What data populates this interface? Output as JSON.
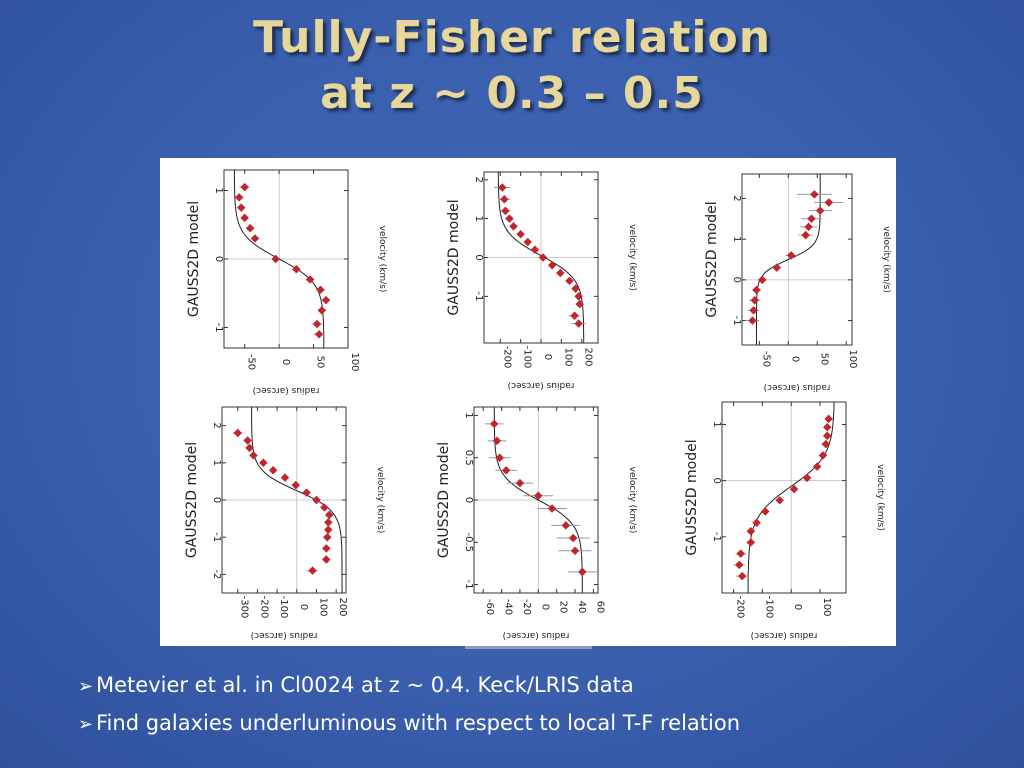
{
  "slide": {
    "title_line1": "Tully-Fisher relation",
    "title_line2": "at z ~ 0.3 – 0.5",
    "bullets": [
      "Metevier et al. in Cl0024 at z ~ 0.4. Keck/LRIS data",
      "Find galaxies underluminous with respect to local T-F relation"
    ],
    "bullet_marker": "➢"
  },
  "colors": {
    "background": "#3a5fae",
    "title": "#e8d79a",
    "points": "#c0262c",
    "curve": "#222222"
  },
  "chart_data": [
    {
      "type": "scatter",
      "title": "GAUSS2D model",
      "xlabel": "radius (arcsec)",
      "ylabel": "velocity (km/s)",
      "xlim": [
        1.3,
        -1.3
      ],
      "ylim": [
        -80,
        100
      ],
      "xticks": [
        1,
        0,
        -1
      ],
      "yticks": [
        -50,
        0,
        50,
        100
      ],
      "grid": "zero-lines",
      "points": [
        [
          1.05,
          -50
        ],
        [
          0.9,
          -58
        ],
        [
          0.75,
          -55
        ],
        [
          0.6,
          -50
        ],
        [
          0.45,
          -42
        ],
        [
          0.3,
          -35
        ],
        [
          0.0,
          -5
        ],
        [
          -0.15,
          25
        ],
        [
          -0.3,
          45
        ],
        [
          -0.45,
          60
        ],
        [
          -0.6,
          68
        ],
        [
          -0.75,
          62
        ],
        [
          -0.95,
          55
        ],
        [
          -1.1,
          58
        ]
      ],
      "errors": [
        8,
        6,
        5,
        5,
        6,
        6,
        5,
        6,
        6,
        6,
        6,
        6,
        8,
        8
      ],
      "curve": {
        "amplitude": 65,
        "center": 0.0,
        "width": 0.35
      }
    },
    {
      "type": "scatter",
      "title": "GAUSS2D model",
      "xlabel": "radius (arcsec)",
      "ylabel": "velocity (km/s)",
      "xlim": [
        2.2,
        -2.2
      ],
      "ylim": [
        -280,
        280
      ],
      "xticks": [
        2,
        1,
        0,
        -1
      ],
      "yticks": [
        -200,
        -100,
        0,
        100,
        200
      ],
      "grid": "zero-lines",
      "points": [
        [
          1.8,
          -190
        ],
        [
          1.5,
          -180
        ],
        [
          1.2,
          -175
        ],
        [
          1.0,
          -155
        ],
        [
          0.8,
          -135
        ],
        [
          0.6,
          -100
        ],
        [
          0.4,
          -65
        ],
        [
          0.2,
          -30
        ],
        [
          0.0,
          10
        ],
        [
          -0.2,
          55
        ],
        [
          -0.4,
          95
        ],
        [
          -0.6,
          140
        ],
        [
          -0.8,
          170
        ],
        [
          -1.0,
          185
        ],
        [
          -1.2,
          190
        ],
        [
          -1.5,
          165
        ],
        [
          -1.7,
          185
        ]
      ],
      "errors": [
        40,
        30,
        25,
        20,
        18,
        15,
        14,
        14,
        14,
        14,
        15,
        15,
        18,
        18,
        20,
        30,
        35
      ],
      "curve": {
        "amplitude": 210,
        "center": 0.05,
        "width": 0.6
      }
    },
    {
      "type": "scatter",
      "title": "GAUSS2D model",
      "xlabel": "radius (arcsec)",
      "ylabel": "velocity (km/s)",
      "xlim": [
        2.6,
        -1.6
      ],
      "ylim": [
        -80,
        110
      ],
      "xticks": [
        2,
        1,
        0,
        -1
      ],
      "yticks": [
        -50,
        0,
        50,
        100
      ],
      "grid": "zero-lines",
      "points": [
        [
          2.1,
          45
        ],
        [
          1.9,
          70
        ],
        [
          1.7,
          55
        ],
        [
          1.5,
          40
        ],
        [
          1.3,
          35
        ],
        [
          1.1,
          30
        ],
        [
          0.6,
          5
        ],
        [
          0.3,
          -20
        ],
        [
          0.0,
          -45
        ],
        [
          -0.25,
          -55
        ],
        [
          -0.5,
          -58
        ],
        [
          -0.75,
          -60
        ],
        [
          -1.0,
          -62
        ]
      ],
      "errors": [
        30,
        25,
        20,
        18,
        15,
        12,
        10,
        8,
        8,
        8,
        10,
        10,
        12
      ],
      "curve": {
        "amplitude": -55,
        "center": 0.5,
        "width": 0.35
      }
    },
    {
      "type": "scatter",
      "title": "GAUSS2D model",
      "xlabel": "radius (arcsec)",
      "ylabel": "velocity (km/s)",
      "xlim": [
        2.5,
        -2.5
      ],
      "ylim": [
        -380,
        250
      ],
      "xticks": [
        2,
        1,
        0,
        -1,
        -2
      ],
      "yticks": [
        -300,
        -200,
        -100,
        0,
        100,
        200
      ],
      "grid": "zero-lines",
      "points": [
        [
          1.8,
          -300
        ],
        [
          1.6,
          -250
        ],
        [
          1.4,
          -240
        ],
        [
          1.2,
          -220
        ],
        [
          1.0,
          -170
        ],
        [
          0.8,
          -120
        ],
        [
          0.6,
          -60
        ],
        [
          0.4,
          -5
        ],
        [
          0.2,
          50
        ],
        [
          0.0,
          100
        ],
        [
          -0.2,
          140
        ],
        [
          -0.4,
          165
        ],
        [
          -0.6,
          160
        ],
        [
          -0.8,
          160
        ],
        [
          -1.0,
          155
        ],
        [
          -1.3,
          150
        ],
        [
          -1.6,
          150
        ],
        [
          -1.9,
          80
        ]
      ],
      "errors": [
        25,
        20,
        20,
        18,
        16,
        14,
        12,
        12,
        12,
        12,
        12,
        12,
        12,
        12,
        14,
        16,
        18,
        30
      ],
      "curve": {
        "amplitude": 230,
        "center": 0.25,
        "width": 0.55
      }
    },
    {
      "type": "scatter",
      "title": "GAUSS2D model",
      "xlabel": "radius (arcsec)",
      "ylabel": "velocity (km/s)",
      "xlim": [
        1.1,
        -1.1
      ],
      "ylim": [
        -70,
        65
      ],
      "xticks": [
        1.0,
        0.5,
        0.0,
        -0.5,
        -1.0
      ],
      "yticks": [
        -60,
        -40,
        -20,
        0,
        20,
        40,
        60
      ],
      "grid": "zero-lines",
      "points": [
        [
          0.9,
          -48
        ],
        [
          0.7,
          -45
        ],
        [
          0.5,
          -42
        ],
        [
          0.35,
          -35
        ],
        [
          0.2,
          -20
        ],
        [
          0.05,
          0
        ],
        [
          -0.1,
          15
        ],
        [
          -0.3,
          30
        ],
        [
          -0.45,
          38
        ],
        [
          -0.6,
          40
        ],
        [
          -0.85,
          48
        ]
      ],
      "errors": [
        10,
        10,
        12,
        12,
        14,
        16,
        16,
        16,
        18,
        18,
        16
      ],
      "curve": {
        "amplitude": 48,
        "center": 0.0,
        "width": 0.28
      }
    },
    {
      "type": "scatter",
      "title": "GAUSS2D model",
      "xlabel": "radius (arcsec)",
      "ylabel": "velocity (km/s)",
      "xlim": [
        1.4,
        -2.0
      ],
      "ylim": [
        -240,
        190
      ],
      "xticks": [
        1,
        0,
        -1
      ],
      "yticks": [
        -200,
        -100,
        0,
        100
      ],
      "grid": "zero-lines",
      "points": [
        [
          1.1,
          130
        ],
        [
          0.95,
          125
        ],
        [
          0.8,
          125
        ],
        [
          0.65,
          120
        ],
        [
          0.45,
          110
        ],
        [
          0.25,
          90
        ],
        [
          0.05,
          55
        ],
        [
          -0.15,
          10
        ],
        [
          -0.35,
          -40
        ],
        [
          -0.55,
          -90
        ],
        [
          -0.75,
          -120
        ],
        [
          -0.9,
          -140
        ],
        [
          -1.1,
          -140
        ],
        [
          -1.3,
          -175
        ],
        [
          -1.5,
          -180
        ],
        [
          -1.7,
          -170
        ]
      ],
      "errors": [
        14,
        12,
        12,
        12,
        12,
        12,
        12,
        12,
        12,
        12,
        14,
        14,
        14,
        18,
        20,
        22
      ],
      "curve": {
        "amplitude": -150,
        "center": -0.1,
        "width": 0.55
      }
    }
  ]
}
